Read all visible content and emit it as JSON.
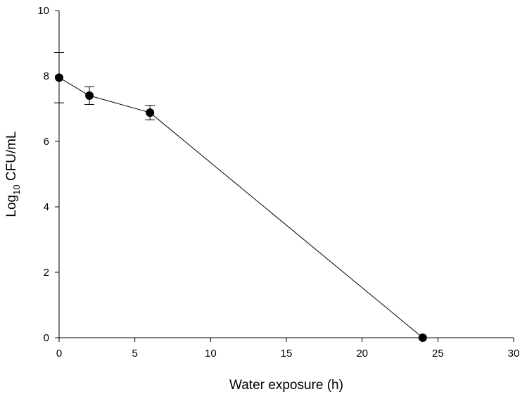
{
  "chart_data": {
    "type": "line",
    "xlabel": "Water exposure (h)",
    "ylabel": {
      "base": "Log",
      "subscript": "10",
      "rest": " CFU/mL"
    },
    "xlim": [
      0,
      30
    ],
    "ylim": [
      0,
      10
    ],
    "x_ticks": [
      "0",
      "5",
      "10",
      "15",
      "20",
      "25",
      "30"
    ],
    "y_ticks": [
      "0",
      "2",
      "4",
      "6",
      "8",
      "10"
    ],
    "grid": false,
    "series": [
      {
        "x": [
          0,
          2,
          6,
          24
        ],
        "y": [
          7.95,
          7.4,
          6.88,
          0
        ],
        "error": [
          0.77,
          0.27,
          0.22,
          0
        ]
      }
    ],
    "colors": {
      "line": "#000000",
      "marker": "#000000"
    }
  }
}
